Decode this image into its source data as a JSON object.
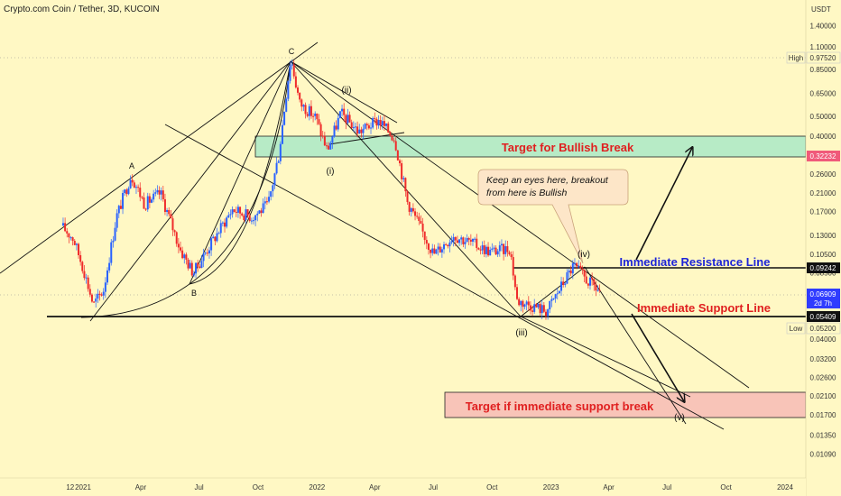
{
  "header": {
    "symbol_line": "Crypto.com Coin / Tether, 3D, KUCOIN"
  },
  "axis": {
    "currency": "USDT",
    "y_ticks": [
      "1.40000",
      "1.10000",
      "0.85000",
      "0.65000",
      "0.50000",
      "0.40000",
      "0.26000",
      "0.21000",
      "0.17000",
      "0.13000",
      "0.10500",
      "0.08500",
      "0.04000",
      "0.03200",
      "0.02600",
      "0.02100",
      "0.01700",
      "0.01350",
      "0.01090"
    ],
    "x_ticks": [
      "12",
      "2021",
      "Apr",
      "Jul",
      "Oct",
      "2022",
      "Apr",
      "Jul",
      "Oct",
      "2023",
      "Apr",
      "Jul",
      "Oct",
      "2024"
    ]
  },
  "price_labels": {
    "high_tag": "High",
    "high_value": "0.97520",
    "low_tag": "Low",
    "low_value": "0.05200",
    "target_top": "0.32232",
    "resistance": "0.09242",
    "last_price": "0.06909",
    "countdown": "2d 7h",
    "support": "0.05409"
  },
  "annotations": {
    "bullish_target": "Target for Bullish Break",
    "bearish_target": "Target if immediate support break",
    "resistance_line": "Immediate Resistance Line",
    "support_line": "Immediate Support Line",
    "callout_line1": "Keep an eyes here, breakout",
    "callout_line2": "from here is Bullish",
    "wave_A": "A",
    "wave_B": "B",
    "wave_C": "C",
    "wave_i": "(i)",
    "wave_ii": "(ii)",
    "wave_iii": "(iii)",
    "wave_iv": "(iv)",
    "wave_v": "(v)"
  },
  "colors": {
    "background": "#fff8c4",
    "candle_up": "#2962ff",
    "candle_down": "#ef2b2b",
    "target_green": "#b7ebc6",
    "target_red": "#f8c4b8",
    "resistance_text": "#1d24d8",
    "support_text": "#e02020",
    "callout_fill": "#fde6c8"
  },
  "chart_data": {
    "type": "candlestick",
    "title": "Crypto.com Coin / Tether, 3D, KUCOIN",
    "ylabel": "USDT",
    "y_scale": "log",
    "ylim": [
      0.0095,
      1.6
    ],
    "xlim": [
      "2020-12-01",
      "2024-01-10"
    ],
    "levels": {
      "all_time_high": 0.9752,
      "low": 0.052,
      "bullish_target_zone": [
        0.32232,
        0.4
      ],
      "bearish_target_zone": [
        0.0175,
        0.0225
      ],
      "immediate_resistance": 0.09242,
      "immediate_support": 0.05409,
      "last_price": 0.06909
    },
    "price_path": [
      [
        "2020-12-01",
        0.145
      ],
      [
        "2020-12-20",
        0.125
      ],
      [
        "2021-01-05",
        0.088
      ],
      [
        "2021-01-20",
        0.059
      ],
      [
        "2021-02-05",
        0.07
      ],
      [
        "2021-02-25",
        0.16
      ],
      [
        "2021-03-20",
        0.258
      ],
      [
        "2021-04-10",
        0.185
      ],
      [
        "2021-05-05",
        0.21
      ],
      [
        "2021-06-05",
        0.11
      ],
      [
        "2021-06-25",
        0.085
      ],
      [
        "2021-07-25",
        0.122
      ],
      [
        "2021-08-25",
        0.175
      ],
      [
        "2021-09-25",
        0.16
      ],
      [
        "2021-10-20",
        0.185
      ],
      [
        "2021-11-05",
        0.32
      ],
      [
        "2021-11-24",
        0.9752
      ],
      [
        "2021-12-08",
        0.58
      ],
      [
        "2022-01-01",
        0.5
      ],
      [
        "2022-01-20",
        0.34
      ],
      [
        "2022-02-10",
        0.52
      ],
      [
        "2022-03-10",
        0.42
      ],
      [
        "2022-04-10",
        0.48
      ],
      [
        "2022-05-05",
        0.39
      ],
      [
        "2022-05-25",
        0.19
      ],
      [
        "2022-06-15",
        0.14
      ],
      [
        "2022-07-05",
        0.105
      ],
      [
        "2022-08-05",
        0.13
      ],
      [
        "2022-09-05",
        0.118
      ],
      [
        "2022-10-01",
        0.108
      ],
      [
        "2022-11-01",
        0.112
      ],
      [
        "2022-11-12",
        0.062
      ],
      [
        "2022-12-10",
        0.058
      ],
      [
        "2022-12-28",
        0.055
      ],
      [
        "2023-02-08",
        0.0924
      ],
      [
        "2023-03-01",
        0.078
      ],
      [
        "2023-03-20",
        0.0691
      ]
    ]
  }
}
